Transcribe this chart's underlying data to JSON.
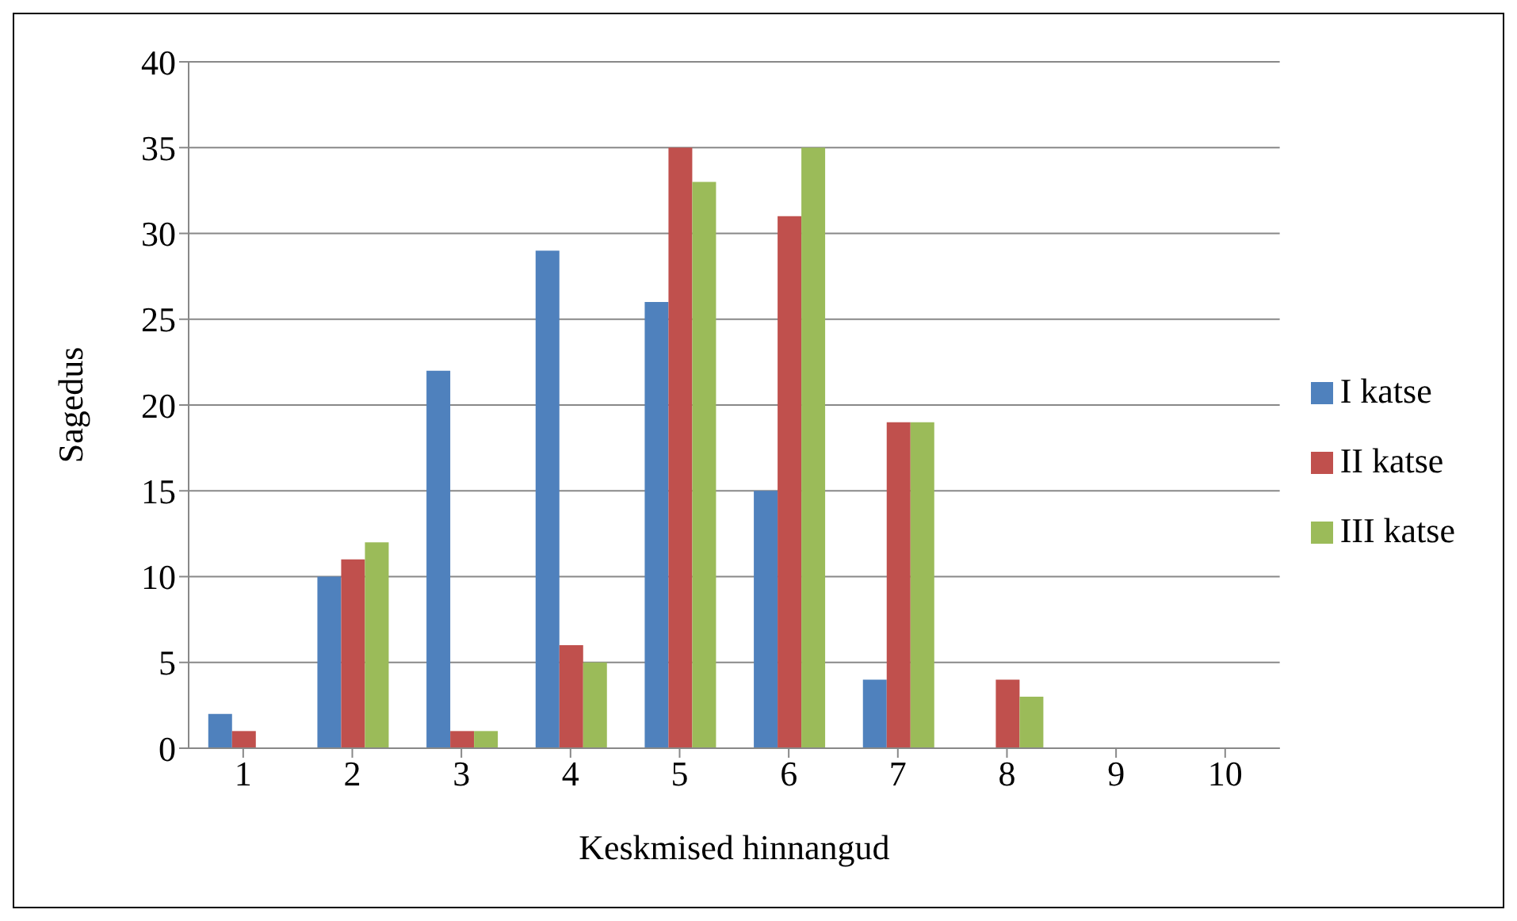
{
  "chart_data": {
    "type": "bar",
    "xlabel": "Keskmised hinnangud",
    "ylabel": "Sagedus",
    "categories": [
      "1",
      "2",
      "3",
      "4",
      "5",
      "6",
      "7",
      "8",
      "9",
      "10"
    ],
    "series": [
      {
        "name": "I katse",
        "color": "#4f81bd",
        "values": [
          2,
          10,
          22,
          29,
          26,
          15,
          4,
          0,
          0,
          0
        ]
      },
      {
        "name": "II katse",
        "color": "#c0504d",
        "values": [
          1,
          11,
          1,
          6,
          35,
          31,
          19,
          4,
          0,
          0
        ]
      },
      {
        "name": "III katse",
        "color": "#9bbb59",
        "values": [
          0,
          12,
          1,
          5,
          33,
          35,
          19,
          3,
          0,
          0
        ]
      }
    ],
    "ylim": [
      0,
      40
    ],
    "yticks": [
      0,
      5,
      10,
      15,
      20,
      25,
      30,
      35,
      40
    ],
    "grid": "y",
    "legend": "right"
  }
}
